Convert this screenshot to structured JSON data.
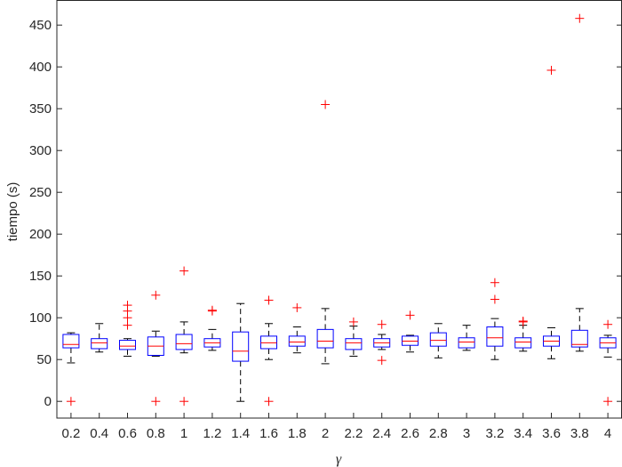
{
  "chart_data": {
    "type": "box",
    "xlabel": "γ",
    "ylabel": "tiempo (s)",
    "ylim": [
      -20,
      480
    ],
    "yticks": [
      0,
      50,
      100,
      150,
      200,
      250,
      300,
      350,
      400,
      450
    ],
    "categories": [
      "0.2",
      "0.4",
      "0.6",
      "0.8",
      "1",
      "1.2",
      "1.4",
      "1.6",
      "1.8",
      "2",
      "2.2",
      "2.4",
      "2.6",
      "2.8",
      "3",
      "3.2",
      "3.4",
      "3.6",
      "3.8",
      "4"
    ],
    "boxes": [
      {
        "whisker_low": 46,
        "q1": 64,
        "median": 68,
        "q3": 80,
        "whisker_high": 82,
        "outliers": [
          0
        ]
      },
      {
        "whisker_low": 59,
        "q1": 63,
        "median": 70,
        "q3": 75,
        "whisker_high": 93,
        "outliers": []
      },
      {
        "whisker_low": 54,
        "q1": 62,
        "median": 66,
        "q3": 73,
        "whisker_high": 75,
        "outliers": [
          91,
          100,
          108,
          115
        ]
      },
      {
        "whisker_low": 54,
        "q1": 55,
        "median": 66,
        "q3": 77,
        "whisker_high": 84,
        "outliers": [
          0,
          127
        ]
      },
      {
        "whisker_low": 58,
        "q1": 62,
        "median": 69,
        "q3": 80,
        "whisker_high": 95,
        "outliers": [
          0,
          156
        ]
      },
      {
        "whisker_low": 61,
        "q1": 65,
        "median": 70,
        "q3": 75,
        "whisker_high": 86,
        "outliers": [
          108,
          109
        ]
      },
      {
        "whisker_low": 0,
        "q1": 48,
        "median": 60,
        "q3": 83,
        "whisker_high": 117,
        "outliers": []
      },
      {
        "whisker_low": 50,
        "q1": 63,
        "median": 70,
        "q3": 78,
        "whisker_high": 93,
        "outliers": [
          0,
          121
        ]
      },
      {
        "whisker_low": 58,
        "q1": 66,
        "median": 71,
        "q3": 78,
        "whisker_high": 89,
        "outliers": [
          112
        ]
      },
      {
        "whisker_low": 45,
        "q1": 64,
        "median": 72,
        "q3": 86,
        "whisker_high": 111,
        "outliers": [
          355
        ]
      },
      {
        "whisker_low": 54,
        "q1": 62,
        "median": 70,
        "q3": 75,
        "whisker_high": 90,
        "outliers": [
          95
        ]
      },
      {
        "whisker_low": 62,
        "q1": 65,
        "median": 70,
        "q3": 75,
        "whisker_high": 80,
        "outliers": [
          49,
          92
        ]
      },
      {
        "whisker_low": 59,
        "q1": 67,
        "median": 72,
        "q3": 78,
        "whisker_high": 79,
        "outliers": [
          103
        ]
      },
      {
        "whisker_low": 52,
        "q1": 66,
        "median": 73,
        "q3": 82,
        "whisker_high": 93,
        "outliers": []
      },
      {
        "whisker_low": 61,
        "q1": 64,
        "median": 71,
        "q3": 76,
        "whisker_high": 91,
        "outliers": []
      },
      {
        "whisker_low": 50,
        "q1": 66,
        "median": 76,
        "q3": 89,
        "whisker_high": 99,
        "outliers": [
          122,
          142
        ]
      },
      {
        "whisker_low": 60,
        "q1": 64,
        "median": 71,
        "q3": 76,
        "whisker_high": 91,
        "outliers": [
          95,
          96
        ]
      },
      {
        "whisker_low": 51,
        "q1": 66,
        "median": 72,
        "q3": 78,
        "whisker_high": 88,
        "outliers": [
          396
        ]
      },
      {
        "whisker_low": 60,
        "q1": 65,
        "median": 68,
        "q3": 85,
        "whisker_high": 111,
        "outliers": [
          458
        ]
      },
      {
        "whisker_low": 53,
        "q1": 64,
        "median": 70,
        "q3": 76,
        "whisker_high": 79,
        "outliers": [
          0,
          92
        ]
      }
    ],
    "colors": {
      "box": "#0000ff",
      "median": "#ff0000",
      "whisker": "#000000",
      "outlier": "#ff0000",
      "axis": "#262626"
    }
  }
}
